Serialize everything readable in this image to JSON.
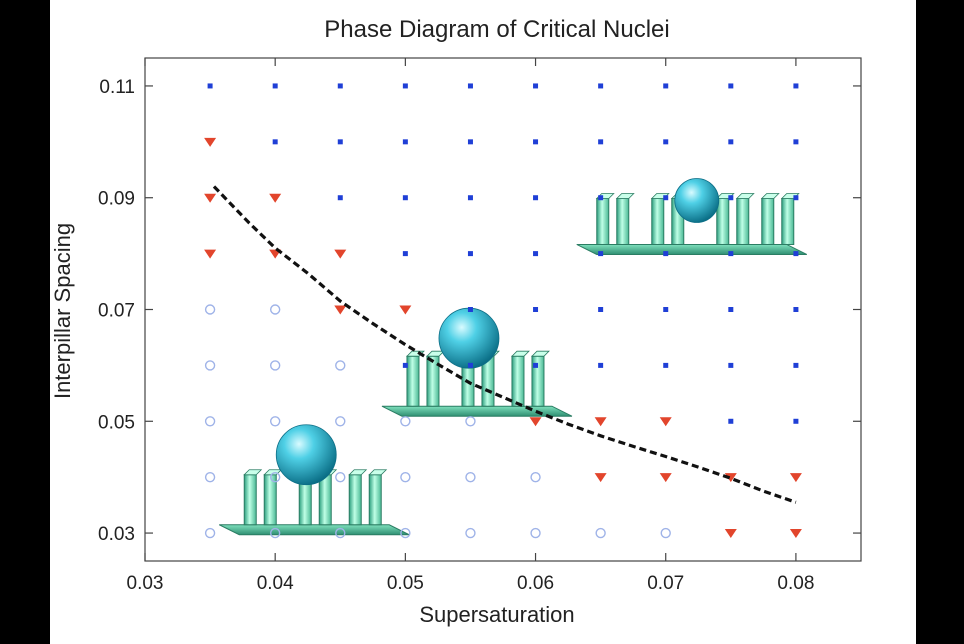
{
  "chart_data": {
    "type": "scatter",
    "title": "Phase Diagram of Critical Nuclei",
    "xlabel": "Supersaturation",
    "ylabel": "Interpillar Spacing",
    "xlim": [
      0.03,
      0.085
    ],
    "ylim": [
      0.025,
      0.115
    ],
    "xticks": [
      0.03,
      0.04,
      0.05,
      0.06,
      0.07,
      0.08
    ],
    "yticks": [
      0.03,
      0.05,
      0.07,
      0.09,
      0.11
    ],
    "xtick_labels": [
      "0.03",
      "0.04",
      "0.05",
      "0.06",
      "0.07",
      "0.08"
    ],
    "ytick_labels": [
      "0.03",
      "0.05",
      "0.07",
      "0.09",
      "0.11"
    ],
    "grid": false,
    "series": [
      {
        "marker": "open-circle",
        "color": "#9fb3e8",
        "points": [
          [
            0.035,
            0.03
          ],
          [
            0.04,
            0.03
          ],
          [
            0.045,
            0.03
          ],
          [
            0.05,
            0.03
          ],
          [
            0.055,
            0.03
          ],
          [
            0.06,
            0.03
          ],
          [
            0.065,
            0.03
          ],
          [
            0.07,
            0.03
          ],
          [
            0.035,
            0.04
          ],
          [
            0.04,
            0.04
          ],
          [
            0.045,
            0.04
          ],
          [
            0.05,
            0.04
          ],
          [
            0.055,
            0.04
          ],
          [
            0.06,
            0.04
          ],
          [
            0.035,
            0.05
          ],
          [
            0.04,
            0.05
          ],
          [
            0.045,
            0.05
          ],
          [
            0.05,
            0.05
          ],
          [
            0.055,
            0.05
          ],
          [
            0.035,
            0.06
          ],
          [
            0.04,
            0.06
          ],
          [
            0.045,
            0.06
          ],
          [
            0.035,
            0.07
          ],
          [
            0.04,
            0.07
          ]
        ]
      },
      {
        "marker": "triangle-down",
        "color": "#e2452c",
        "points": [
          [
            0.075,
            0.03
          ],
          [
            0.08,
            0.03
          ],
          [
            0.065,
            0.04
          ],
          [
            0.07,
            0.04
          ],
          [
            0.075,
            0.04
          ],
          [
            0.08,
            0.04
          ],
          [
            0.06,
            0.05
          ],
          [
            0.065,
            0.05
          ],
          [
            0.07,
            0.05
          ],
          [
            0.05,
            0.07
          ],
          [
            0.045,
            0.07
          ],
          [
            0.035,
            0.08
          ],
          [
            0.04,
            0.08
          ],
          [
            0.045,
            0.08
          ],
          [
            0.035,
            0.09
          ],
          [
            0.04,
            0.09
          ],
          [
            0.035,
            0.1
          ]
        ]
      },
      {
        "marker": "dot",
        "color": "#1f3fd6",
        "points": [
          [
            0.075,
            0.05
          ],
          [
            0.08,
            0.05
          ],
          [
            0.05,
            0.06
          ],
          [
            0.055,
            0.06
          ],
          [
            0.06,
            0.06
          ],
          [
            0.065,
            0.06
          ],
          [
            0.07,
            0.06
          ],
          [
            0.075,
            0.06
          ],
          [
            0.08,
            0.06
          ],
          [
            0.055,
            0.07
          ],
          [
            0.06,
            0.07
          ],
          [
            0.065,
            0.07
          ],
          [
            0.07,
            0.07
          ],
          [
            0.075,
            0.07
          ],
          [
            0.08,
            0.07
          ],
          [
            0.05,
            0.08
          ],
          [
            0.055,
            0.08
          ],
          [
            0.06,
            0.08
          ],
          [
            0.065,
            0.08
          ],
          [
            0.07,
            0.08
          ],
          [
            0.075,
            0.08
          ],
          [
            0.08,
            0.08
          ],
          [
            0.045,
            0.09
          ],
          [
            0.05,
            0.09
          ],
          [
            0.055,
            0.09
          ],
          [
            0.06,
            0.09
          ],
          [
            0.065,
            0.09
          ],
          [
            0.07,
            0.09
          ],
          [
            0.075,
            0.09
          ],
          [
            0.08,
            0.09
          ],
          [
            0.04,
            0.1
          ],
          [
            0.045,
            0.1
          ],
          [
            0.05,
            0.1
          ],
          [
            0.055,
            0.1
          ],
          [
            0.06,
            0.1
          ],
          [
            0.065,
            0.1
          ],
          [
            0.07,
            0.1
          ],
          [
            0.075,
            0.1
          ],
          [
            0.08,
            0.1
          ],
          [
            0.035,
            0.11
          ],
          [
            0.04,
            0.11
          ],
          [
            0.045,
            0.11
          ],
          [
            0.05,
            0.11
          ],
          [
            0.055,
            0.11
          ],
          [
            0.06,
            0.11
          ],
          [
            0.065,
            0.11
          ],
          [
            0.07,
            0.11
          ],
          [
            0.075,
            0.11
          ],
          [
            0.08,
            0.11
          ]
        ]
      }
    ],
    "boundary_curve": {
      "style": "dashed",
      "color": "#111111",
      "x": [
        0.0353,
        0.038,
        0.04,
        0.0425,
        0.045,
        0.0475,
        0.05,
        0.0525,
        0.055,
        0.0575,
        0.06,
        0.0625,
        0.065,
        0.0675,
        0.07,
        0.0725,
        0.075,
        0.0775,
        0.08
      ],
      "y": [
        0.092,
        0.0855,
        0.081,
        0.0765,
        0.0715,
        0.0675,
        0.0637,
        0.0602,
        0.0568,
        0.0543,
        0.0518,
        0.0495,
        0.0474,
        0.0455,
        0.0437,
        0.0418,
        0.0398,
        0.0375,
        0.0355
      ]
    },
    "illustrations": [
      {
        "name": "drop-on-pillar-tops",
        "x": 0.043,
        "y": 0.039
      },
      {
        "name": "drop-partially-between-pillars",
        "x": 0.0555,
        "y": 0.062
      },
      {
        "name": "drop-between-pillars",
        "x": 0.072,
        "y": 0.087
      }
    ]
  }
}
